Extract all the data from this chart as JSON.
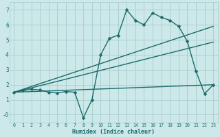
{
  "xlabel": "Humidex (Indice chaleur)",
  "bg_color": "#cce8e8",
  "grid_color": "#a8cccc",
  "line_color": "#1a6b6b",
  "xlim": [
    -0.5,
    23.5
  ],
  "ylim": [
    -0.55,
    7.5
  ],
  "xticks": [
    0,
    1,
    2,
    3,
    4,
    5,
    6,
    7,
    8,
    9,
    10,
    11,
    12,
    13,
    14,
    15,
    16,
    17,
    18,
    19,
    20,
    21,
    22,
    23
  ],
  "yticks": [
    0,
    1,
    2,
    3,
    4,
    5,
    6,
    7
  ],
  "ytick_labels": [
    "-0",
    "1",
    "2",
    "3",
    "4",
    "5",
    "6",
    "7"
  ],
  "series_main": {
    "x": [
      0,
      1,
      2,
      3,
      4,
      5,
      6,
      7,
      8,
      9,
      10,
      11,
      12,
      13,
      14,
      15,
      16,
      17,
      18,
      19,
      20,
      21,
      22,
      23
    ],
    "y": [
      1.5,
      1.6,
      1.7,
      1.65,
      1.5,
      1.45,
      1.55,
      1.5,
      -0.2,
      1.0,
      4.0,
      5.1,
      5.3,
      7.0,
      6.3,
      6.0,
      6.8,
      6.5,
      6.3,
      5.9,
      4.9,
      2.9,
      1.4,
      2.0
    ]
  },
  "series_lines": [
    {
      "x": [
        0,
        23
      ],
      "y": [
        1.5,
        5.9
      ]
    },
    {
      "x": [
        0,
        23
      ],
      "y": [
        1.5,
        4.85
      ]
    },
    {
      "x": [
        0,
        23
      ],
      "y": [
        1.5,
        2.0
      ]
    }
  ],
  "lw": 1.0,
  "marker_size": 2.5
}
